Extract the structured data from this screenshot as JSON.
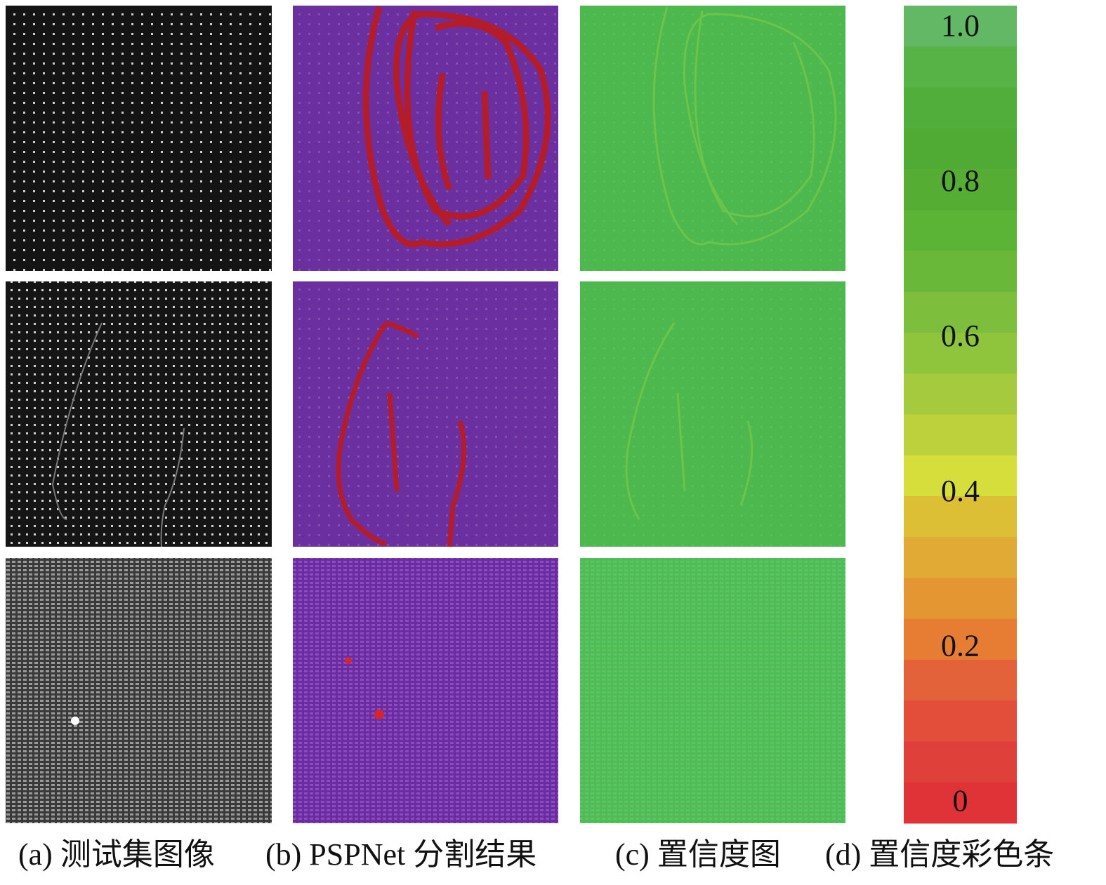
{
  "captions": [
    "(a) 测试集图像",
    "(b) PSPNet 分割结果",
    "(c) 置信度图",
    "(d) 置信度彩色条"
  ],
  "colorbar": {
    "range": [
      -0.025,
      1.03
    ],
    "ticks": [
      0,
      0.2,
      0.4,
      0.6,
      0.8,
      {
        "value": 1,
        "label": "1.0"
      }
    ],
    "colors": [
      "#63b865",
      "#58b347",
      "#52ae3a",
      "#4fab33",
      "#55ae33",
      "#5cb436",
      "#6ab83a",
      "#7dbf3c",
      "#8fc43d",
      "#a6ca3d",
      "#bdd13d",
      "#d6de3c",
      "#dcbf35",
      "#e0aa35",
      "#e49632",
      "#e67d32",
      "#e4623a",
      "#e24e3a",
      "#e0403a",
      "#e03338"
    ]
  }
}
